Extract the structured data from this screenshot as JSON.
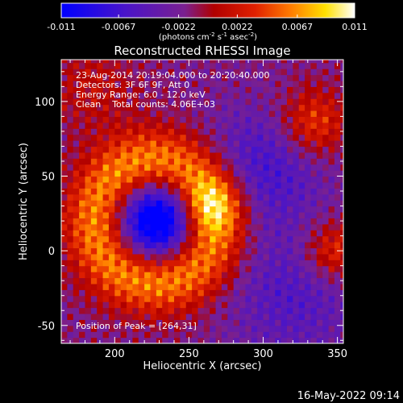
{
  "colors": {
    "background": "#000000",
    "foreground": "#ffffff"
  },
  "colorbar": {
    "colormap": "blue-purple-red-orange-yellow-white",
    "range": [
      -0.011,
      0.011
    ],
    "ticks": [
      "-0.011",
      "-0.0067",
      "-0.0022",
      "0.0022",
      "0.0067",
      "0.011"
    ],
    "tick_values": [
      -0.011,
      -0.0067,
      -0.0022,
      0.0022,
      0.0067,
      0.011
    ],
    "units_prefix": "(photons cm",
    "units_exp1": "-2",
    "units_mid": " s",
    "units_exp2": "-1",
    "units_mid2": " asec",
    "units_exp3": "-2",
    "units_suffix": ")"
  },
  "chart_data": {
    "type": "heatmap",
    "title": "Reconstructed RHESSI Image",
    "xlabel": "Heliocentric X (arcsec)",
    "ylabel": "Heliocentric Y (arcsec)",
    "xlim": [
      164,
      354
    ],
    "ylim": [
      -62,
      128
    ],
    "xticks": [
      200,
      250,
      300,
      350
    ],
    "yticks": [
      -50,
      0,
      50,
      100
    ],
    "pixel_size_arcsec": 4,
    "colormap": "blue-purple-red-orange-yellow-white",
    "zrange": [
      -0.011,
      0.011
    ],
    "features": {
      "source_ring_center": [
        228,
        20
      ],
      "ring_radius_arcsec": 40,
      "inner_hole_min": -0.011,
      "peak": [
        264,
        31
      ],
      "secondary_sources": [
        [
          334,
          86
        ],
        [
          348,
          0
        ]
      ]
    },
    "annotations": {
      "line1": "23-Aug-2014 20:19:04.000 to 20:20:40.000",
      "line2": "Detectors: 3F 6F 9F, Att 0",
      "line3": "Energy Range: 6.0 - 12.0 keV",
      "line4": "Clean    Total counts: 4.06E+03",
      "peak_label": "Position of Peak = [264,31]"
    }
  },
  "footer": {
    "timestamp": "16-May-2022 09:14"
  }
}
